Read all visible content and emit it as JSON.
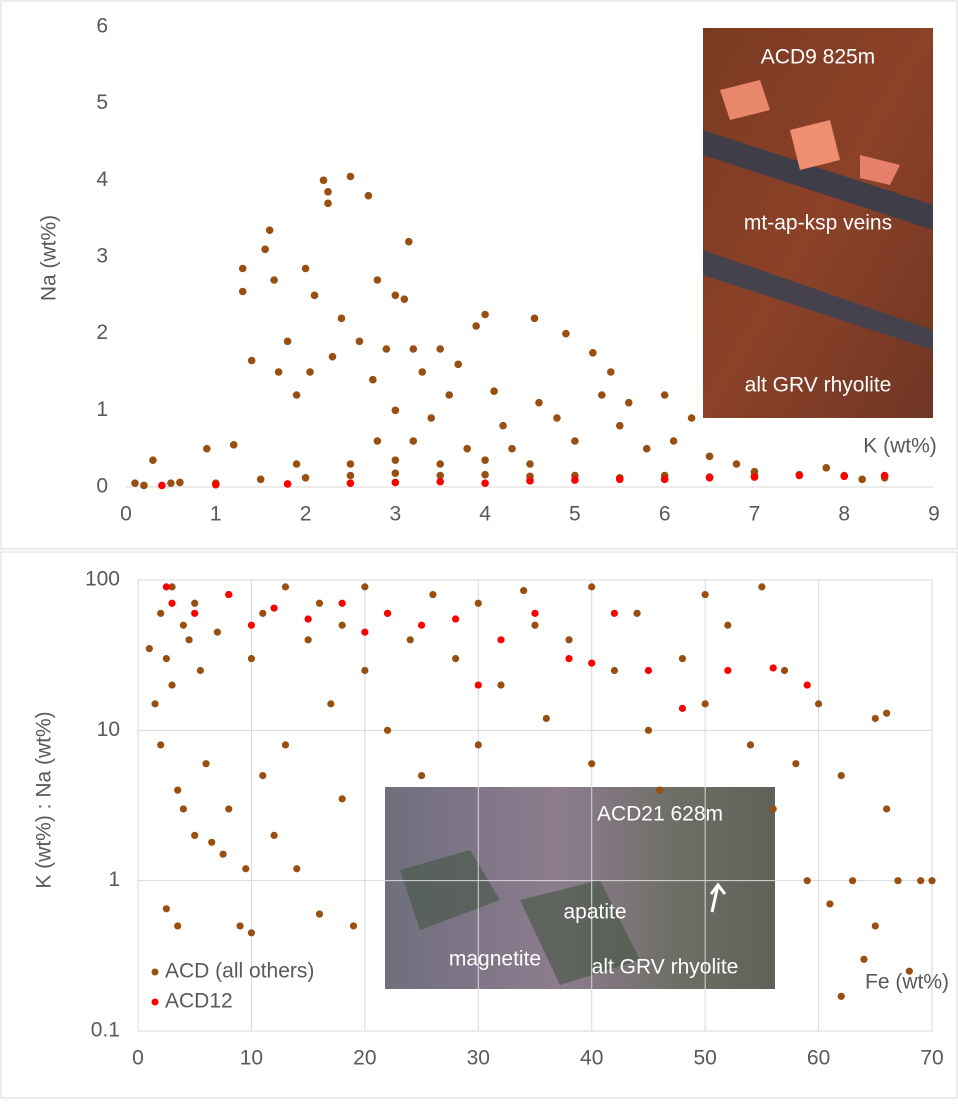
{
  "chart_data": [
    {
      "type": "scatter",
      "xlabel": "K (wt%)",
      "ylabel": "Na (wt%)",
      "xlim": [
        0,
        9
      ],
      "ylim": [
        0,
        6
      ],
      "xticks": [
        0,
        1,
        2,
        3,
        4,
        5,
        6,
        7,
        8,
        9
      ],
      "yticks": [
        0,
        1,
        2,
        3,
        4,
        5,
        6
      ],
      "grid": false,
      "log_y": false,
      "annotations": [
        "ACD9  825m",
        "mt-ap-ksp  veins",
        "alt GRV rhyolite"
      ],
      "series": [
        {
          "color": "#9a4f12",
          "x": [
            0.1,
            0.3,
            0.5,
            0.9,
            1.2,
            1.3,
            1.3,
            1.4,
            1.55,
            1.6,
            1.65,
            1.7,
            1.8,
            1.9,
            2.0,
            2.05,
            2.1,
            2.2,
            2.25,
            2.25,
            2.3,
            2.4,
            2.5,
            2.6,
            2.7,
            2.75,
            2.8,
            2.9,
            3.0,
            3.0,
            3.1,
            3.15,
            3.2,
            3.3,
            3.4,
            3.5,
            3.6,
            3.7,
            3.8,
            3.9,
            4.0,
            4.1,
            4.2,
            4.3,
            4.5,
            4.55,
            4.6,
            4.8,
            4.9,
            5.0,
            5.2,
            5.3,
            5.4,
            5.5,
            5.6,
            5.8,
            6.0,
            6.1,
            6.3,
            6.5,
            6.8,
            7.0,
            1.9,
            2.5,
            3.0,
            3.5,
            4.0,
            2.8,
            3.2,
            0.2,
            0.6,
            1.0,
            1.5,
            2.0,
            2.5,
            3.0,
            3.5,
            4.0,
            4.5,
            5.0,
            5.5,
            6.0,
            6.5,
            7.0,
            7.5,
            8.0,
            8.2,
            7.8,
            8.45
          ],
          "values": [
            0.05,
            0.35,
            0.05,
            0.5,
            0.55,
            2.85,
            2.55,
            1.65,
            3.1,
            3.35,
            2.7,
            1.5,
            1.9,
            1.2,
            2.85,
            1.5,
            2.5,
            4.0,
            3.7,
            3.85,
            1.7,
            2.2,
            4.05,
            1.9,
            3.8,
            1.4,
            2.7,
            1.8,
            2.5,
            1.0,
            2.45,
            3.2,
            1.8,
            1.5,
            0.9,
            1.8,
            1.2,
            1.6,
            0.5,
            2.1,
            2.25,
            1.25,
            0.8,
            0.5,
            0.3,
            2.2,
            1.1,
            0.9,
            2.0,
            0.6,
            1.75,
            1.2,
            1.5,
            0.8,
            1.1,
            0.5,
            1.2,
            0.6,
            0.9,
            0.4,
            0.3,
            0.2,
            0.3,
            0.3,
            0.35,
            0.3,
            0.35,
            0.6,
            0.6,
            0.02,
            0.06,
            0.05,
            0.1,
            0.12,
            0.15,
            0.18,
            0.15,
            0.16,
            0.14,
            0.15,
            0.12,
            0.15,
            0.13,
            0.15,
            0.16,
            0.15,
            0.1,
            0.25,
            0.12
          ]
        },
        {
          "color": "#ff0000",
          "x": [
            0.4,
            1.0,
            1.8,
            2.5,
            3.0,
            3.5,
            4.0,
            4.5,
            5.0,
            5.5,
            6.0,
            6.5,
            7.0,
            7.5,
            8.0,
            8.45
          ],
          "values": [
            0.02,
            0.03,
            0.04,
            0.05,
            0.06,
            0.07,
            0.05,
            0.08,
            0.09,
            0.1,
            0.1,
            0.12,
            0.13,
            0.15,
            0.14,
            0.15
          ]
        }
      ]
    },
    {
      "type": "scatter",
      "xlabel": "Fe (wt%)",
      "ylabel": "K (wt%) : Na (wt%)",
      "xlim": [
        0,
        70
      ],
      "ylim": [
        0.1,
        100
      ],
      "xticks": [
        0,
        10,
        20,
        30,
        40,
        50,
        60,
        70
      ],
      "yticks": [
        0.1,
        1,
        10,
        100
      ],
      "grid": true,
      "log_y": true,
      "legend": "lower left",
      "annotations": [
        "ACD21  628m",
        "apatite",
        "magnetite",
        "alt GRV rhyolite"
      ],
      "series": [
        {
          "name": "ACD (all others)",
          "color": "#9a4f12",
          "x": [
            1,
            1.5,
            2,
            2,
            2.5,
            2.5,
            3,
            3,
            3.5,
            3.5,
            4,
            4,
            4.5,
            5,
            5,
            5.5,
            6,
            6.5,
            7,
            7.5,
            8,
            8,
            9,
            9.5,
            10,
            10,
            11,
            11,
            12,
            13,
            13,
            14,
            15,
            16,
            16,
            17,
            18,
            18,
            19,
            20,
            20,
            22,
            22,
            24,
            25,
            26,
            28,
            30,
            30,
            32,
            34,
            35,
            36,
            38,
            40,
            40,
            42,
            44,
            45,
            46,
            48,
            50,
            50,
            52,
            54,
            55,
            56,
            57,
            58,
            59,
            60,
            61,
            62,
            63,
            64,
            65,
            65,
            66,
            67,
            68,
            69,
            70,
            62,
            66
          ],
          "values": [
            35,
            15,
            60,
            8,
            30,
            0.65,
            90,
            20,
            4,
            0.5,
            50,
            3,
            40,
            70,
            2,
            25,
            6,
            1.8,
            45,
            1.5,
            80,
            3,
            0.5,
            1.2,
            30,
            0.45,
            60,
            5,
            2,
            90,
            8,
            1.2,
            40,
            70,
            0.6,
            15,
            50,
            3.5,
            0.5,
            90,
            25,
            60,
            10,
            40,
            5,
            80,
            30,
            70,
            8,
            20,
            85,
            50,
            12,
            40,
            90,
            6,
            25,
            60,
            10,
            4,
            30,
            80,
            15,
            50,
            8,
            90,
            3,
            25,
            6,
            1,
            15,
            0.7,
            5,
            1,
            0.3,
            12,
            0.5,
            3,
            1,
            0.25,
            1,
            1,
            0.17,
            13
          ]
        },
        {
          "name": "ACD12",
          "color": "#ff0000",
          "x": [
            2.5,
            3,
            5,
            8,
            10,
            12,
            15,
            18,
            20,
            22,
            25,
            28,
            30,
            32,
            35,
            38,
            40,
            42,
            45,
            48,
            52,
            56,
            59
          ],
          "values": [
            90,
            70,
            60,
            80,
            50,
            65,
            55,
            70,
            45,
            60,
            50,
            55,
            20,
            40,
            60,
            30,
            28,
            60,
            25,
            14,
            25,
            26,
            20
          ]
        }
      ]
    }
  ]
}
